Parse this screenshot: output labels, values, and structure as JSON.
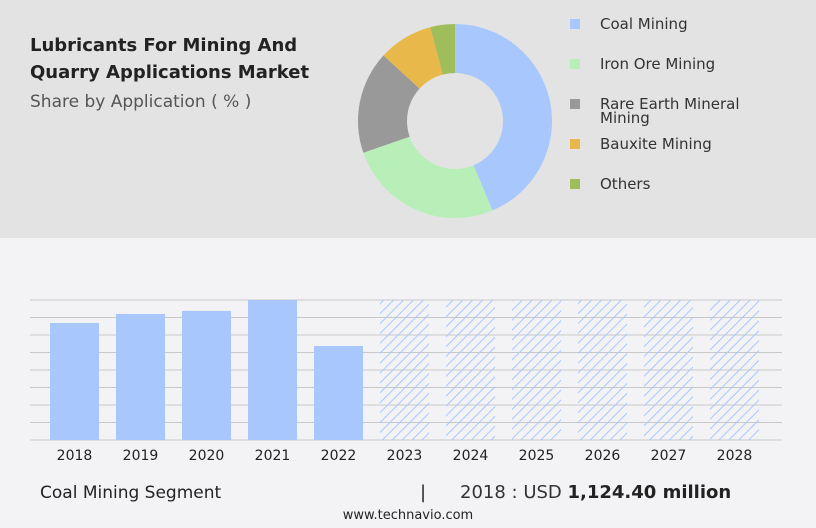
{
  "chart_data": [
    {
      "type": "pie",
      "variant": "donut",
      "title": "Lubricants For Mining And Quarry Applications Market",
      "subtitle": "Share by Application ( % )",
      "categories": [
        "Coal Mining",
        "Iron Ore Mining",
        "Rare Earth Mineral Mining",
        "Bauxite Mining",
        "Others"
      ],
      "values": [
        43.7,
        26.0,
        17.1,
        9.1,
        4.1
      ],
      "colors": [
        "#a8c8fd",
        "#b8efb8",
        "#999999",
        "#e8b94a",
        "#9fbd5a"
      ],
      "legend": "right"
    },
    {
      "type": "bar",
      "categories": [
        "2018",
        "2019",
        "2020",
        "2021",
        "2022",
        "2023",
        "2024",
        "2025",
        "2026",
        "2027",
        "2028"
      ],
      "values": [
        1124.4,
        1211,
        1240,
        1345,
        903,
        null,
        null,
        null,
        null,
        null,
        null
      ],
      "forecast": [
        "2023",
        "2024",
        "2025",
        "2026",
        "2027",
        "2028"
      ],
      "ylim": [
        0,
        1345
      ],
      "grid": true,
      "color": "#a8c8fd"
    }
  ],
  "footer": {
    "segment": "Coal Mining Segment",
    "separator": "|",
    "year_label": "2018 : USD ",
    "value": "1,124.40 million"
  },
  "site": "www.technavio.com"
}
